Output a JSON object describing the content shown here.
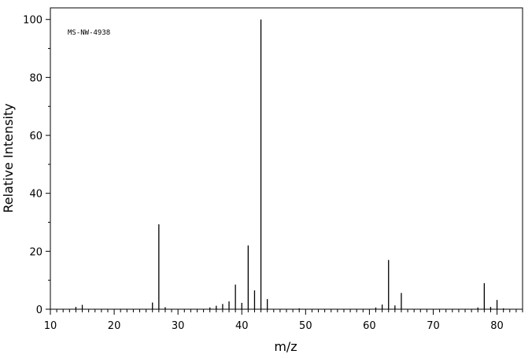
{
  "chart_data": {
    "type": "bar",
    "annotation": "MS-NW-4938",
    "xlabel": "m/z",
    "ylabel": "Relative Intensity",
    "xlim": [
      10,
      84
    ],
    "ylim": [
      0,
      104
    ],
    "x_ticks": [
      10,
      20,
      30,
      40,
      50,
      60,
      70,
      80
    ],
    "y_ticks": [
      0,
      20,
      40,
      60,
      80,
      100
    ],
    "x_tick_labels": [
      "10",
      "20",
      "30",
      "40",
      "50",
      "60",
      "70",
      "80"
    ],
    "y_tick_labels": [
      "0",
      "20",
      "40",
      "60",
      "80",
      "100"
    ],
    "grid": false,
    "colors": {
      "line": "#000000",
      "background": "#ffffff"
    },
    "series": [
      {
        "x": [
          14,
          15,
          26,
          27,
          28,
          35,
          36,
          37,
          38,
          39,
          40,
          41,
          42,
          43,
          44,
          49,
          61,
          62,
          63,
          64,
          65,
          77,
          78,
          79,
          80,
          81
        ],
        "values": [
          0.8,
          1.5,
          2.3,
          29.3,
          0.7,
          0.6,
          1.2,
          1.8,
          2.7,
          8.5,
          2.2,
          22.0,
          6.5,
          100.0,
          3.5,
          0.3,
          0.6,
          1.6,
          17.0,
          1.3,
          5.6,
          0.6,
          9.0,
          0.8,
          3.2,
          0.3
        ]
      }
    ]
  }
}
